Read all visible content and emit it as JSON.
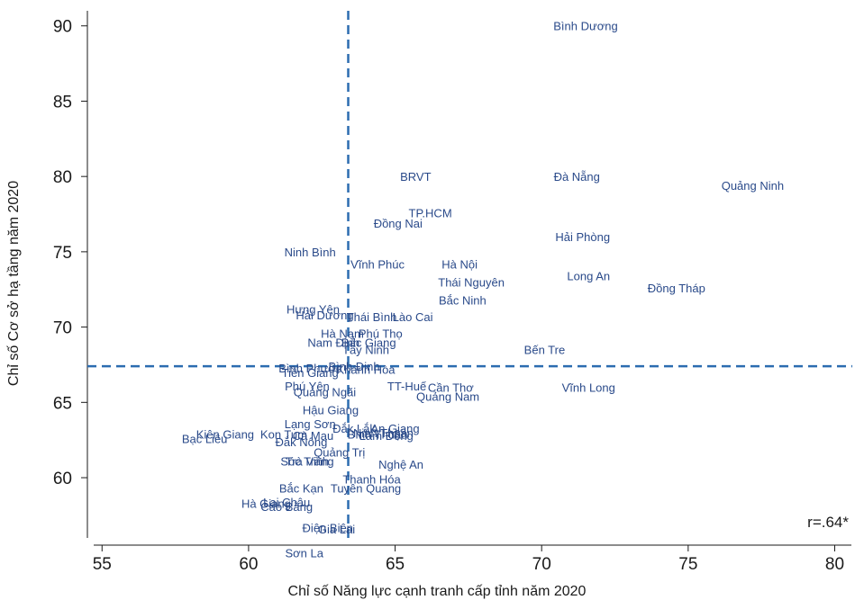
{
  "chart_data": {
    "type": "scatter",
    "xlabel": "Chỉ số Năng lực cạnh tranh cấp tỉnh năm 2020",
    "ylabel": "Chỉ số Cơ sở hạ tầng năm 2020",
    "xlim": [
      54.5,
      80.6
    ],
    "ylim": [
      56,
      91
    ],
    "x_ticks": [
      55,
      60,
      65,
      70,
      75,
      80
    ],
    "y_ticks": [
      60,
      65,
      70,
      75,
      80,
      85,
      90
    ],
    "reference_lines": {
      "x": 63.4,
      "y": 67.4
    },
    "annotation": "r=.64*",
    "label_color": "#2a4a8a",
    "line_color": "#2c6cb0",
    "points": [
      {
        "label": "Bình Dương",
        "x": 71.5,
        "y": 90.0
      },
      {
        "label": "BRVT",
        "x": 65.7,
        "y": 80.0
      },
      {
        "label": "Đà Nẵng",
        "x": 71.2,
        "y": 80.0
      },
      {
        "label": "Quảng Ninh",
        "x": 77.2,
        "y": 79.4
      },
      {
        "label": "TP.HCM",
        "x": 66.2,
        "y": 77.6
      },
      {
        "label": "Đồng Nai",
        "x": 65.1,
        "y": 76.9
      },
      {
        "label": "Hải Phòng",
        "x": 71.4,
        "y": 76.0
      },
      {
        "label": "Ninh Bình",
        "x": 62.1,
        "y": 75.0
      },
      {
        "label": "Vĩnh Phúc",
        "x": 64.4,
        "y": 74.2
      },
      {
        "label": "Hà Nội",
        "x": 67.2,
        "y": 74.2
      },
      {
        "label": "Long An",
        "x": 71.6,
        "y": 73.4
      },
      {
        "label": "Thái Nguyên",
        "x": 67.6,
        "y": 73.0
      },
      {
        "label": "Đồng Tháp",
        "x": 74.6,
        "y": 72.6
      },
      {
        "label": "Bắc Ninh",
        "x": 67.3,
        "y": 71.8
      },
      {
        "label": "Hưng Yên",
        "x": 62.2,
        "y": 71.2
      },
      {
        "label": "Hải Dương",
        "x": 62.6,
        "y": 70.8
      },
      {
        "label": "Thái Bình",
        "x": 64.2,
        "y": 70.7
      },
      {
        "label": "Lào Cai",
        "x": 65.6,
        "y": 70.7
      },
      {
        "label": "Hà Nam",
        "x": 63.2,
        "y": 69.6
      },
      {
        "label": "Phú Thọ",
        "x": 64.5,
        "y": 69.6
      },
      {
        "label": "Nam Định",
        "x": 62.9,
        "y": 69.0
      },
      {
        "label": "Bắc Giang",
        "x": 64.1,
        "y": 69.0
      },
      {
        "label": "Tây Ninh",
        "x": 64.0,
        "y": 68.5
      },
      {
        "label": "Bến Tre",
        "x": 70.1,
        "y": 68.5
      },
      {
        "label": "Bình Phước",
        "x": 62.1,
        "y": 67.3
      },
      {
        "label": "Bình Định",
        "x": 63.6,
        "y": 67.4
      },
      {
        "label": "Khánh Hòa",
        "x": 64.0,
        "y": 67.2
      },
      {
        "label": "Tiền Giang",
        "x": 62.1,
        "y": 67.0
      },
      {
        "label": "Phú Yên",
        "x": 62.0,
        "y": 66.1
      },
      {
        "label": "TT-Huế",
        "x": 65.4,
        "y": 66.1
      },
      {
        "label": "Cần Thơ",
        "x": 66.9,
        "y": 66.0
      },
      {
        "label": "Vĩnh Long",
        "x": 71.6,
        "y": 66.0
      },
      {
        "label": "Quảng Ngãi",
        "x": 62.6,
        "y": 65.7
      },
      {
        "label": "Quảng Nam",
        "x": 66.8,
        "y": 65.4
      },
      {
        "label": "Hậu Giang",
        "x": 62.8,
        "y": 64.5
      },
      {
        "label": "Lạng Sơn",
        "x": 62.1,
        "y": 63.6
      },
      {
        "label": "Đắk Lắk",
        "x": 63.6,
        "y": 63.3
      },
      {
        "label": "An Giang",
        "x": 65.0,
        "y": 63.3
      },
      {
        "label": "Ninh Thuận",
        "x": 64.6,
        "y": 63.0
      },
      {
        "label": "Bình Thuận",
        "x": 64.4,
        "y": 62.9
      },
      {
        "label": "Lâm Đồng",
        "x": 64.7,
        "y": 62.8
      },
      {
        "label": "Kiên Giang",
        "x": 59.2,
        "y": 62.9
      },
      {
        "label": "Kon Tum",
        "x": 61.2,
        "y": 62.9
      },
      {
        "label": "Cà Mau",
        "x": 62.2,
        "y": 62.8
      },
      {
        "label": "Bạc Liêu",
        "x": 58.5,
        "y": 62.6
      },
      {
        "label": "Đắk Nông",
        "x": 61.8,
        "y": 62.4
      },
      {
        "label": "Quảng Trị",
        "x": 63.1,
        "y": 61.7
      },
      {
        "label": "Trà Vinh",
        "x": 62.0,
        "y": 61.1
      },
      {
        "label": "Sóc Trăng",
        "x": 62.0,
        "y": 61.1
      },
      {
        "label": "Nghệ An",
        "x": 65.2,
        "y": 60.9
      },
      {
        "label": "Thanh Hóa",
        "x": 64.2,
        "y": 59.9
      },
      {
        "label": "Bắc Kạn",
        "x": 61.8,
        "y": 59.3
      },
      {
        "label": "Tuyên Quang",
        "x": 64.0,
        "y": 59.3
      },
      {
        "label": "Lai Châu",
        "x": 61.3,
        "y": 58.4
      },
      {
        "label": "Hà Giang",
        "x": 60.6,
        "y": 58.3
      },
      {
        "label": "Cao Bằng",
        "x": 61.3,
        "y": 58.1
      },
      {
        "label": "Điện Biên",
        "x": 62.7,
        "y": 56.7
      },
      {
        "label": "Gia Lai",
        "x": 63.0,
        "y": 56.6
      },
      {
        "label": "Sơn La",
        "x": 61.9,
        "y": 55.0
      }
    ]
  }
}
